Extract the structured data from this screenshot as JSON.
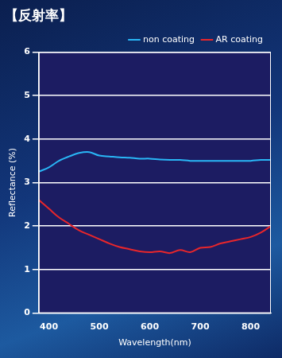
{
  "chart_data": {
    "type": "line",
    "title": "【反射率】",
    "x_label": "Wavelength(nm)",
    "y_label": "Reflectance (%)",
    "x": [
      380,
      400,
      420,
      440,
      460,
      480,
      500,
      520,
      540,
      560,
      580,
      600,
      620,
      640,
      660,
      680,
      700,
      720,
      740,
      760,
      780,
      800,
      820,
      840
    ],
    "series": [
      {
        "name": "non coating",
        "color": "#29b6f6",
        "values": [
          3.25,
          3.35,
          3.5,
          3.6,
          3.68,
          3.7,
          3.62,
          3.6,
          3.58,
          3.57,
          3.55,
          3.55,
          3.53,
          3.52,
          3.52,
          3.5,
          3.5,
          3.5,
          3.5,
          3.5,
          3.5,
          3.5,
          3.52,
          3.52
        ]
      },
      {
        "name": "AR coating",
        "color": "#e8262b",
        "values": [
          2.6,
          2.4,
          2.2,
          2.05,
          1.9,
          1.8,
          1.7,
          1.6,
          1.52,
          1.47,
          1.42,
          1.4,
          1.42,
          1.38,
          1.45,
          1.4,
          1.5,
          1.52,
          1.6,
          1.65,
          1.7,
          1.75,
          1.85,
          2.0
        ]
      }
    ],
    "xlim": [
      380,
      840
    ],
    "xticks": [
      400,
      500,
      600,
      700,
      800
    ],
    "ylim": [
      0,
      6
    ],
    "yticks": [
      0,
      1,
      2,
      3,
      4,
      5,
      6
    ],
    "grid": true,
    "legend": "upper right"
  }
}
